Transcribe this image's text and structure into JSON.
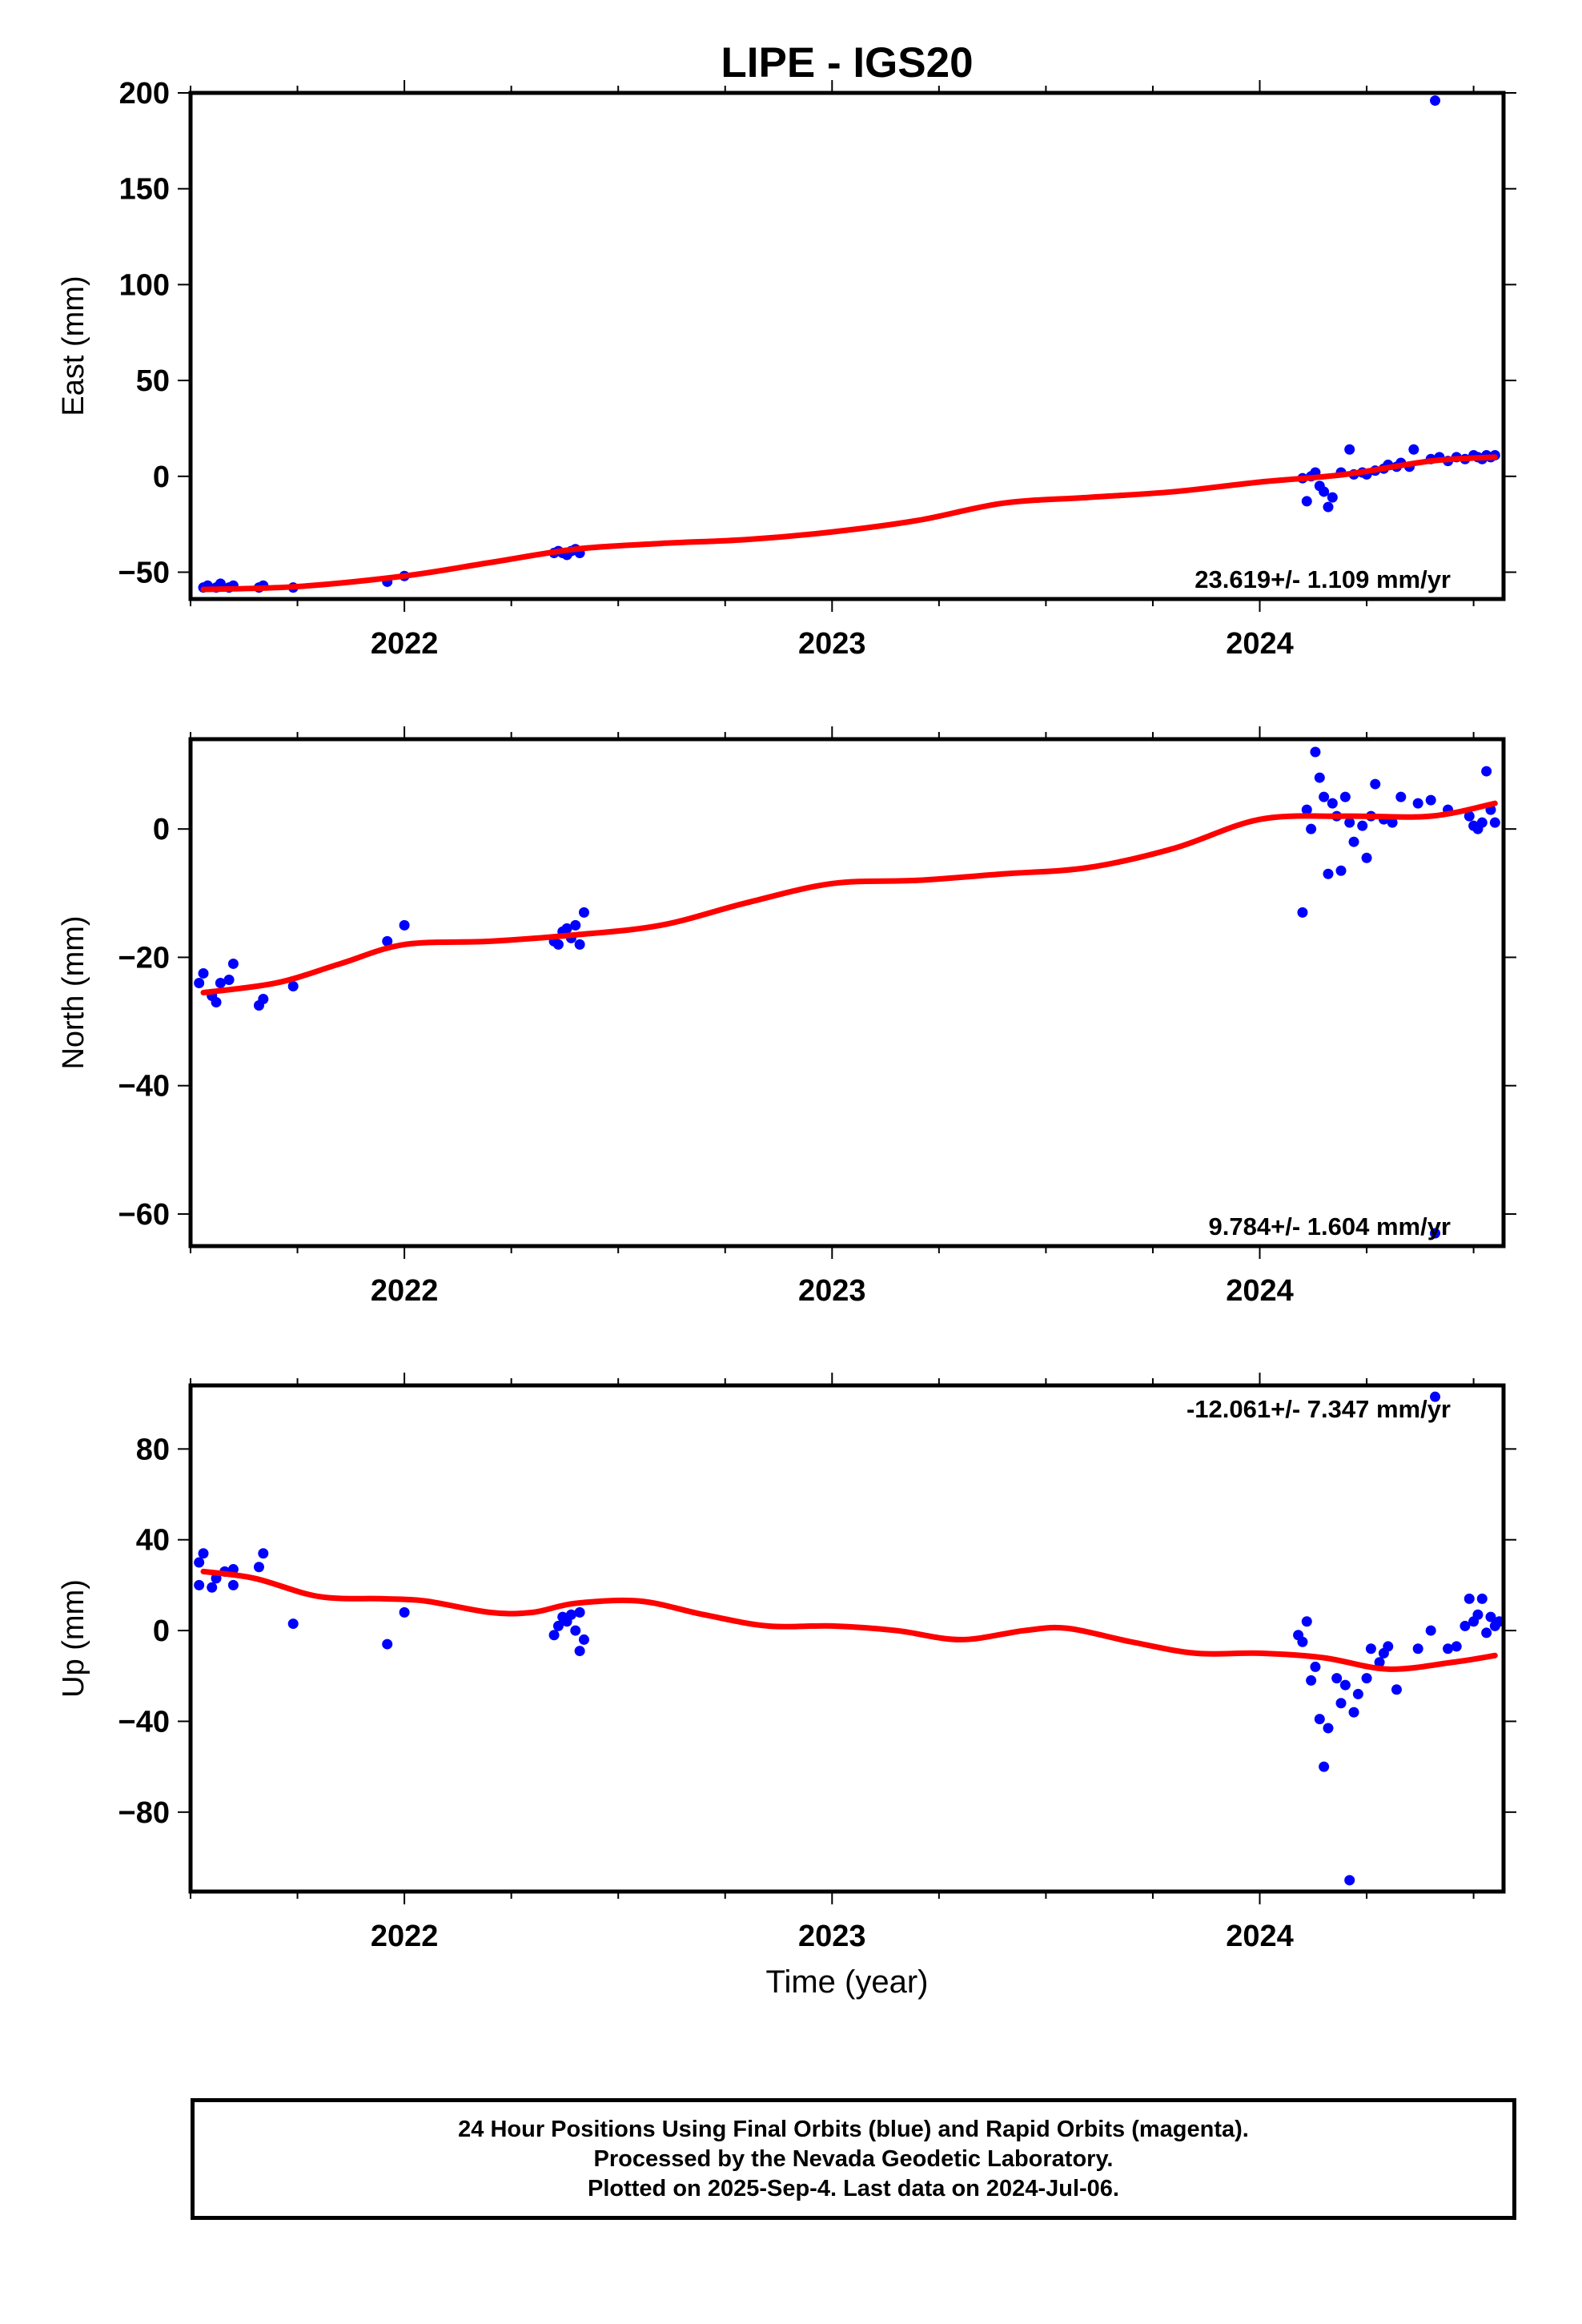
{
  "title": "LIPE - IGS20",
  "xlabel": "Time (year)",
  "footer": [
    "24 Hour Positions Using Final Orbits (blue) and Rapid Orbits (magenta).",
    "Processed by the Nevada Geodetic Laboratory.",
    "Plotted on 2025-Sep-4. Last data on 2024-Jul-06."
  ],
  "colors": {
    "points": "#0000ff",
    "fit": "#ff0000",
    "frame": "#000000"
  },
  "chart_data": [
    {
      "type": "scatter",
      "ylabel": "East (mm)",
      "rate_label": "23.619+/- 1.109 mm/yr",
      "xlim": [
        2021.5,
        2024.57
      ],
      "ylim": [
        -64,
        200
      ],
      "yticks": [
        -50,
        0,
        50,
        100,
        150,
        200
      ],
      "xticks": [
        2022,
        2023,
        2024
      ],
      "grid": false,
      "points": [
        [
          2021.53,
          -58
        ],
        [
          2021.54,
          -57
        ],
        [
          2021.56,
          -58
        ],
        [
          2021.57,
          -56
        ],
        [
          2021.59,
          -58
        ],
        [
          2021.6,
          -57
        ],
        [
          2021.66,
          -58
        ],
        [
          2021.67,
          -57
        ],
        [
          2021.74,
          -58
        ],
        [
          2021.96,
          -55
        ],
        [
          2022.0,
          -52
        ],
        [
          2022.35,
          -40
        ],
        [
          2022.36,
          -39
        ],
        [
          2022.37,
          -40
        ],
        [
          2022.38,
          -41
        ],
        [
          2022.39,
          -39
        ],
        [
          2022.4,
          -38
        ],
        [
          2022.41,
          -40
        ],
        [
          2024.1,
          -1
        ],
        [
          2024.11,
          -13
        ],
        [
          2024.12,
          0
        ],
        [
          2024.13,
          2
        ],
        [
          2024.14,
          -5
        ],
        [
          2024.15,
          -8
        ],
        [
          2024.16,
          -16
        ],
        [
          2024.17,
          -11
        ],
        [
          2024.19,
          2
        ],
        [
          2024.21,
          14
        ],
        [
          2024.22,
          1
        ],
        [
          2024.24,
          2
        ],
        [
          2024.25,
          1
        ],
        [
          2024.27,
          3
        ],
        [
          2024.29,
          4
        ],
        [
          2024.3,
          6
        ],
        [
          2024.32,
          5
        ],
        [
          2024.33,
          7
        ],
        [
          2024.35,
          5
        ],
        [
          2024.36,
          14
        ],
        [
          2024.41,
          196
        ],
        [
          2024.4,
          9
        ],
        [
          2024.42,
          10
        ],
        [
          2024.44,
          8
        ],
        [
          2024.46,
          10
        ],
        [
          2024.48,
          9
        ],
        [
          2024.5,
          11
        ],
        [
          2024.51,
          10
        ],
        [
          2024.52,
          9
        ],
        [
          2024.53,
          11
        ],
        [
          2024.54,
          10
        ],
        [
          2024.55,
          11
        ]
      ],
      "fit": [
        [
          2021.53,
          -59
        ],
        [
          2021.75,
          -57.5
        ],
        [
          2022.0,
          -52
        ],
        [
          2022.2,
          -45
        ],
        [
          2022.4,
          -38
        ],
        [
          2022.6,
          -35
        ],
        [
          2022.8,
          -33
        ],
        [
          2023.0,
          -29
        ],
        [
          2023.2,
          -23
        ],
        [
          2023.4,
          -14
        ],
        [
          2023.6,
          -11
        ],
        [
          2023.8,
          -8
        ],
        [
          2024.0,
          -3
        ],
        [
          2024.2,
          1
        ],
        [
          2024.4,
          8
        ],
        [
          2024.55,
          10
        ]
      ]
    },
    {
      "type": "scatter",
      "ylabel": "North (mm)",
      "rate_label": "9.784+/- 1.604 mm/yr",
      "xlim": [
        2021.5,
        2024.57
      ],
      "ylim": [
        -65,
        14
      ],
      "yticks": [
        -60,
        -40,
        -20,
        0
      ],
      "xticks": [
        2022,
        2023,
        2024
      ],
      "grid": false,
      "points": [
        [
          2021.52,
          -24
        ],
        [
          2021.53,
          -22.5
        ],
        [
          2021.55,
          -26
        ],
        [
          2021.56,
          -27
        ],
        [
          2021.57,
          -24
        ],
        [
          2021.59,
          -23.5
        ],
        [
          2021.6,
          -21
        ],
        [
          2021.66,
          -27.5
        ],
        [
          2021.67,
          -26.5
        ],
        [
          2021.74,
          -24.5
        ],
        [
          2021.96,
          -17.5
        ],
        [
          2022.0,
          -15
        ],
        [
          2022.35,
          -17.5
        ],
        [
          2022.36,
          -18
        ],
        [
          2022.37,
          -16
        ],
        [
          2022.38,
          -15.5
        ],
        [
          2022.39,
          -17
        ],
        [
          2022.4,
          -15
        ],
        [
          2022.41,
          -18
        ],
        [
          2022.42,
          -13
        ],
        [
          2024.1,
          -13
        ],
        [
          2024.11,
          3
        ],
        [
          2024.12,
          0
        ],
        [
          2024.13,
          12
        ],
        [
          2024.14,
          8
        ],
        [
          2024.15,
          5
        ],
        [
          2024.16,
          -7
        ],
        [
          2024.17,
          4
        ],
        [
          2024.18,
          2
        ],
        [
          2024.19,
          -6.5
        ],
        [
          2024.2,
          5
        ],
        [
          2024.21,
          1
        ],
        [
          2024.22,
          -2
        ],
        [
          2024.24,
          0.5
        ],
        [
          2024.25,
          -4.5
        ],
        [
          2024.26,
          2
        ],
        [
          2024.27,
          7
        ],
        [
          2024.29,
          1.5
        ],
        [
          2024.31,
          1
        ],
        [
          2024.33,
          5
        ],
        [
          2024.37,
          4
        ],
        [
          2024.4,
          4.5
        ],
        [
          2024.41,
          -63
        ],
        [
          2024.44,
          3
        ],
        [
          2024.49,
          2
        ],
        [
          2024.5,
          0.5
        ],
        [
          2024.51,
          0
        ],
        [
          2024.52,
          1
        ],
        [
          2024.53,
          9
        ],
        [
          2024.54,
          3
        ],
        [
          2024.55,
          1
        ]
      ],
      "fit": [
        [
          2021.53,
          -25.5
        ],
        [
          2021.7,
          -24
        ],
        [
          2021.85,
          -21
        ],
        [
          2022.0,
          -18
        ],
        [
          2022.2,
          -17.5
        ],
        [
          2022.4,
          -16.5
        ],
        [
          2022.6,
          -15
        ],
        [
          2022.8,
          -11.5
        ],
        [
          2023.0,
          -8.5
        ],
        [
          2023.2,
          -8
        ],
        [
          2023.4,
          -7
        ],
        [
          2023.6,
          -6
        ],
        [
          2023.8,
          -3
        ],
        [
          2024.0,
          1.5
        ],
        [
          2024.2,
          2
        ],
        [
          2024.4,
          2
        ],
        [
          2024.55,
          4
        ]
      ]
    },
    {
      "type": "scatter",
      "ylabel": "Up (mm)",
      "rate_label": "-12.061+/- 7.347 mm/yr",
      "xlim": [
        2021.5,
        2024.57
      ],
      "ylim": [
        -115,
        108
      ],
      "yticks": [
        -80,
        -40,
        0,
        40,
        80
      ],
      "xticks": [
        2022,
        2023,
        2024
      ],
      "grid": false,
      "points": [
        [
          2021.52,
          30
        ],
        [
          2021.53,
          34
        ],
        [
          2021.52,
          20
        ],
        [
          2021.55,
          19
        ],
        [
          2021.56,
          23
        ],
        [
          2021.58,
          26
        ],
        [
          2021.6,
          20
        ],
        [
          2021.6,
          27
        ],
        [
          2021.66,
          28
        ],
        [
          2021.67,
          34
        ],
        [
          2021.74,
          3
        ],
        [
          2021.96,
          -6
        ],
        [
          2022.0,
          8
        ],
        [
          2022.35,
          -2
        ],
        [
          2022.36,
          2
        ],
        [
          2022.37,
          6
        ],
        [
          2022.38,
          4
        ],
        [
          2022.39,
          7
        ],
        [
          2022.4,
          0
        ],
        [
          2022.41,
          8
        ],
        [
          2022.42,
          -4
        ],
        [
          2022.41,
          -9
        ],
        [
          2024.09,
          -2
        ],
        [
          2024.1,
          -5
        ],
        [
          2024.11,
          4
        ],
        [
          2024.12,
          -22
        ],
        [
          2024.13,
          -16
        ],
        [
          2024.14,
          -39
        ],
        [
          2024.15,
          -60
        ],
        [
          2024.16,
          -43
        ],
        [
          2024.18,
          -21
        ],
        [
          2024.19,
          -32
        ],
        [
          2024.2,
          -24
        ],
        [
          2024.21,
          -110
        ],
        [
          2024.22,
          -36
        ],
        [
          2024.23,
          -28
        ],
        [
          2024.25,
          -21
        ],
        [
          2024.26,
          -8
        ],
        [
          2024.28,
          -14
        ],
        [
          2024.29,
          -10
        ],
        [
          2024.3,
          -7
        ],
        [
          2024.32,
          -26
        ],
        [
          2024.37,
          -8
        ],
        [
          2024.4,
          0
        ],
        [
          2024.41,
          103
        ],
        [
          2024.44,
          -8
        ],
        [
          2024.46,
          -7
        ],
        [
          2024.48,
          2
        ],
        [
          2024.49,
          14
        ],
        [
          2024.5,
          4
        ],
        [
          2024.51,
          7
        ],
        [
          2024.52,
          14
        ],
        [
          2024.53,
          -1
        ],
        [
          2024.54,
          6
        ],
        [
          2024.55,
          2
        ],
        [
          2024.56,
          4
        ]
      ],
      "fit": [
        [
          2021.53,
          26
        ],
        [
          2021.65,
          23
        ],
        [
          2021.8,
          15
        ],
        [
          2021.95,
          14
        ],
        [
          2022.05,
          13
        ],
        [
          2022.2,
          8
        ],
        [
          2022.3,
          8
        ],
        [
          2022.4,
          12
        ],
        [
          2022.55,
          13
        ],
        [
          2022.7,
          7
        ],
        [
          2022.85,
          2
        ],
        [
          2023.0,
          2
        ],
        [
          2023.15,
          0
        ],
        [
          2023.3,
          -4
        ],
        [
          2023.45,
          0
        ],
        [
          2023.55,
          1
        ],
        [
          2023.7,
          -5
        ],
        [
          2023.85,
          -10
        ],
        [
          2024.0,
          -10
        ],
        [
          2024.15,
          -12
        ],
        [
          2024.3,
          -17
        ],
        [
          2024.45,
          -14
        ],
        [
          2024.55,
          -11
        ]
      ]
    }
  ]
}
